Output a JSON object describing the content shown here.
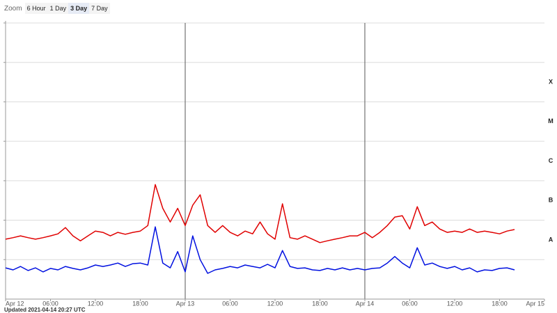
{
  "zoom": {
    "label": "Zoom",
    "options": [
      "6 Hour",
      "1 Day",
      "3 Day",
      "7 Day"
    ],
    "selected": 2
  },
  "footer": "Updated 2021-04-14 20:27 UTC",
  "chart_data": {
    "type": "line",
    "log_scale_y": true,
    "grid": true,
    "xlim": [
      0,
      72
    ],
    "xticks": [
      {
        "value": 0,
        "label": "Apr 12"
      },
      {
        "value": 6,
        "label": "06:00"
      },
      {
        "value": 12,
        "label": "12:00"
      },
      {
        "value": 18,
        "label": "18:00"
      },
      {
        "value": 24,
        "label": "Apr 13"
      },
      {
        "value": 30,
        "label": "06:00"
      },
      {
        "value": 36,
        "label": "12:00"
      },
      {
        "value": 42,
        "label": "18:00"
      },
      {
        "value": 48,
        "label": "Apr 14"
      },
      {
        "value": 54,
        "label": "06:00"
      },
      {
        "value": 60,
        "label": "12:00"
      },
      {
        "value": 66,
        "label": "18:00"
      },
      {
        "value": 72,
        "label": "Apr 15"
      }
    ],
    "ylim": [
      1e-09,
      0.01
    ],
    "yticks": [
      1e-08,
      1e-07,
      1e-06,
      1e-05,
      0.0001,
      0.001,
      0.01
    ],
    "flare_classes": [
      {
        "label": "A",
        "value": 1e-08
      },
      {
        "label": "B",
        "value": 1e-07
      },
      {
        "label": "C",
        "value": 1e-06
      },
      {
        "label": "M",
        "value": 1e-05
      },
      {
        "label": "X",
        "value": 0.0001
      }
    ],
    "x": [
      0,
      1,
      2,
      3,
      4,
      5,
      6,
      7,
      8,
      9,
      10,
      11,
      12,
      13,
      14,
      15,
      16,
      17,
      18,
      19,
      20,
      21,
      22,
      23,
      24,
      25,
      26,
      27,
      28,
      29,
      30,
      31,
      32,
      33,
      34,
      35,
      36,
      37,
      38,
      39,
      40,
      41,
      42,
      43,
      44,
      45,
      46,
      47,
      48,
      49,
      50,
      51,
      52,
      53,
      54,
      55,
      56,
      57,
      58,
      59,
      60,
      61,
      62,
      63,
      64,
      65,
      66,
      67,
      68
    ],
    "series": [
      {
        "color": "#e00000",
        "values": [
          3.3e-08,
          3.6e-08,
          4e-08,
          3.6e-08,
          3.3e-08,
          3.6e-08,
          4e-08,
          4.5e-08,
          6.5e-08,
          4e-08,
          3e-08,
          4e-08,
          5.3e-08,
          4.9e-08,
          4e-08,
          4.9e-08,
          4.4e-08,
          4.9e-08,
          5.3e-08,
          7.3e-08,
          8e-07,
          2e-07,
          9e-08,
          2e-07,
          7.3e-08,
          2.4e-07,
          4.4e-07,
          7.3e-08,
          4.9e-08,
          7.3e-08,
          4.9e-08,
          4e-08,
          5.3e-08,
          4.5e-08,
          9e-08,
          4.5e-08,
          3.3e-08,
          2.6e-07,
          3.6e-08,
          3.3e-08,
          4e-08,
          3.3e-08,
          2.7e-08,
          3e-08,
          3.3e-08,
          3.6e-08,
          4e-08,
          4e-08,
          4.9e-08,
          3.6e-08,
          4.9e-08,
          7.3e-08,
          1.2e-07,
          1.3e-07,
          6e-08,
          2.2e-07,
          7.3e-08,
          9e-08,
          6e-08,
          4.9e-08,
          5.3e-08,
          4.9e-08,
          6e-08,
          4.9e-08,
          5.3e-08,
          4.9e-08,
          4.5e-08,
          5.3e-08,
          5.8e-08
        ]
      },
      {
        "color": "#0010e0",
        "values": [
          6.2e-09,
          5.5e-09,
          6.7e-09,
          5.3e-09,
          6.2e-09,
          4.9e-09,
          6e-09,
          5.5e-09,
          6.7e-09,
          6e-09,
          5.5e-09,
          6.2e-09,
          7.3e-09,
          6.7e-09,
          7.3e-09,
          8.2e-09,
          6.7e-09,
          7.9e-09,
          8.2e-09,
          7.3e-09,
          6.8e-08,
          8.2e-09,
          6.2e-09,
          1.6e-08,
          4.9e-09,
          4e-08,
          1e-08,
          4.5e-09,
          5.5e-09,
          6e-09,
          6.7e-09,
          6.2e-09,
          7.3e-09,
          6.7e-09,
          6.2e-09,
          7.6e-09,
          6.2e-09,
          1.7e-08,
          6.7e-09,
          6e-09,
          6.2e-09,
          5.5e-09,
          5.3e-09,
          6e-09,
          5.5e-09,
          6.2e-09,
          5.5e-09,
          6e-09,
          5.5e-09,
          6e-09,
          6.2e-09,
          8.2e-09,
          1.2e-08,
          8.2e-09,
          6.2e-09,
          2e-08,
          7.3e-09,
          8.2e-09,
          6.7e-09,
          6e-09,
          6.7e-09,
          5.5e-09,
          6.2e-09,
          4.9e-09,
          5.5e-09,
          5.3e-09,
          6e-09,
          6.2e-09,
          5.5e-09
        ]
      }
    ]
  }
}
